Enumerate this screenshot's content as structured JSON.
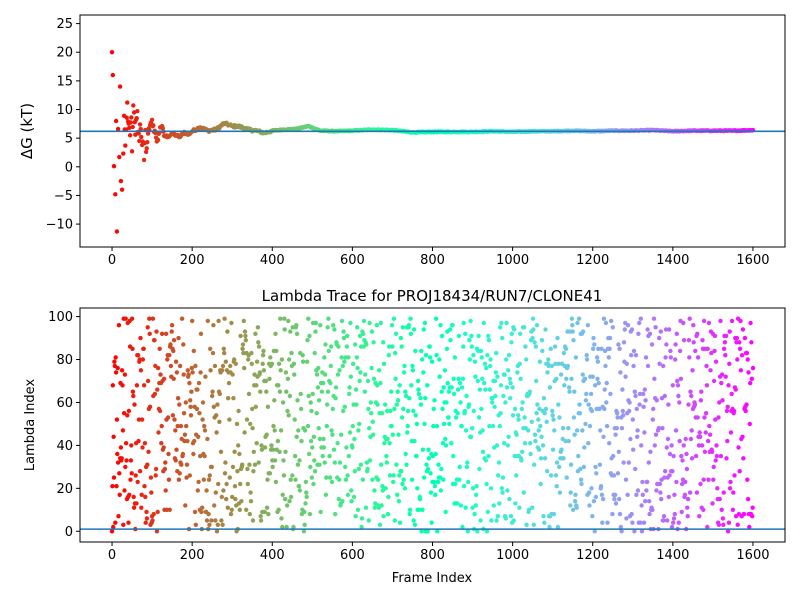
{
  "chart_data": [
    {
      "type": "scatter",
      "title": "",
      "xlabel": "",
      "ylabel": "ΔG (kT)",
      "xlim": [
        -80,
        1680
      ],
      "ylim": [
        -14,
        26.5
      ],
      "xticks": [
        0,
        200,
        400,
        600,
        800,
        1000,
        1200,
        1400,
        1600
      ],
      "yticks": [
        -10,
        -5,
        0,
        5,
        10,
        15,
        20,
        25
      ],
      "hline": 6.2,
      "hline_color": "#1f77b4",
      "colormap": "rainbow (red at frame 0 → violet at frame 1600)",
      "series": [
        {
          "frames": [
            0,
            2,
            5,
            8,
            10,
            12,
            15,
            18,
            20,
            22,
            25,
            28,
            30,
            33,
            35,
            38,
            40,
            43,
            45,
            48,
            50,
            53,
            55,
            58,
            60,
            63,
            65,
            68,
            70,
            73,
            75,
            78,
            80,
            83,
            85,
            88,
            90,
            95,
            100,
            105,
            110,
            115,
            120,
            125,
            130,
            140,
            150,
            160,
            170,
            180,
            190,
            200,
            220,
            240,
            260,
            280,
            300,
            320,
            340,
            360,
            380,
            400,
            430,
            460,
            490,
            520,
            560,
            600,
            650,
            700,
            750,
            800,
            850,
            900,
            950,
            1000,
            1050,
            1100,
            1150,
            1200,
            1250,
            1300,
            1350,
            1400,
            1450,
            1500,
            1550,
            1600
          ],
          "values": [
            20,
            16,
            0.1,
            -4.8,
            8,
            -11.3,
            6.6,
            1.7,
            14,
            -2.5,
            -4,
            2.3,
            8.9,
            3.7,
            6.5,
            11.2,
            7.9,
            6.8,
            5.5,
            8.6,
            2.7,
            10.7,
            9.5,
            5.6,
            8.2,
            9.7,
            6.1,
            4.5,
            7.4,
            5.2,
            3.8,
            4.1,
            1.2,
            6.4,
            2.6,
            4.3,
            5.8,
            7.3,
            8.2,
            6.1,
            5.1,
            4.7,
            6.9,
            7.1,
            5.4,
            5.3,
            5.8,
            5.5,
            5.2,
            6.1,
            5.6,
            6.2,
            6.9,
            6.3,
            6.5,
            7.6,
            7.1,
            7,
            6.5,
            6.3,
            5.9,
            6.3,
            6.5,
            6.6,
            7.1,
            6.3,
            6.2,
            6.3,
            6.5,
            6.4,
            6,
            6.1,
            6.1,
            6.1,
            6.2,
            6.1,
            6.2,
            6.2,
            6.3,
            6.2,
            6.3,
            6.3,
            6.4,
            6.2,
            6.3,
            6.3,
            6.3,
            6.4
          ]
        }
      ]
    },
    {
      "type": "scatter",
      "title": "Lambda Trace for PROJ18434/RUN7/CLONE41",
      "xlabel": "Frame Index",
      "ylabel": "Lambda Index",
      "xlim": [
        -80,
        1680
      ],
      "ylim": [
        -5,
        104
      ],
      "xticks": [
        0,
        200,
        400,
        600,
        800,
        1000,
        1200,
        1400,
        1600
      ],
      "yticks": [
        0,
        20,
        40,
        60,
        80,
        100
      ],
      "hline": 1,
      "hline_color": "#1f77b4",
      "colormap": "rainbow (red at frame 0 → violet at frame 1600)",
      "series": [
        {
          "frames": "0..1600 (one point per frame)",
          "values": "lambda index per frame, scattered uniformly across 0–99"
        }
      ]
    }
  ]
}
